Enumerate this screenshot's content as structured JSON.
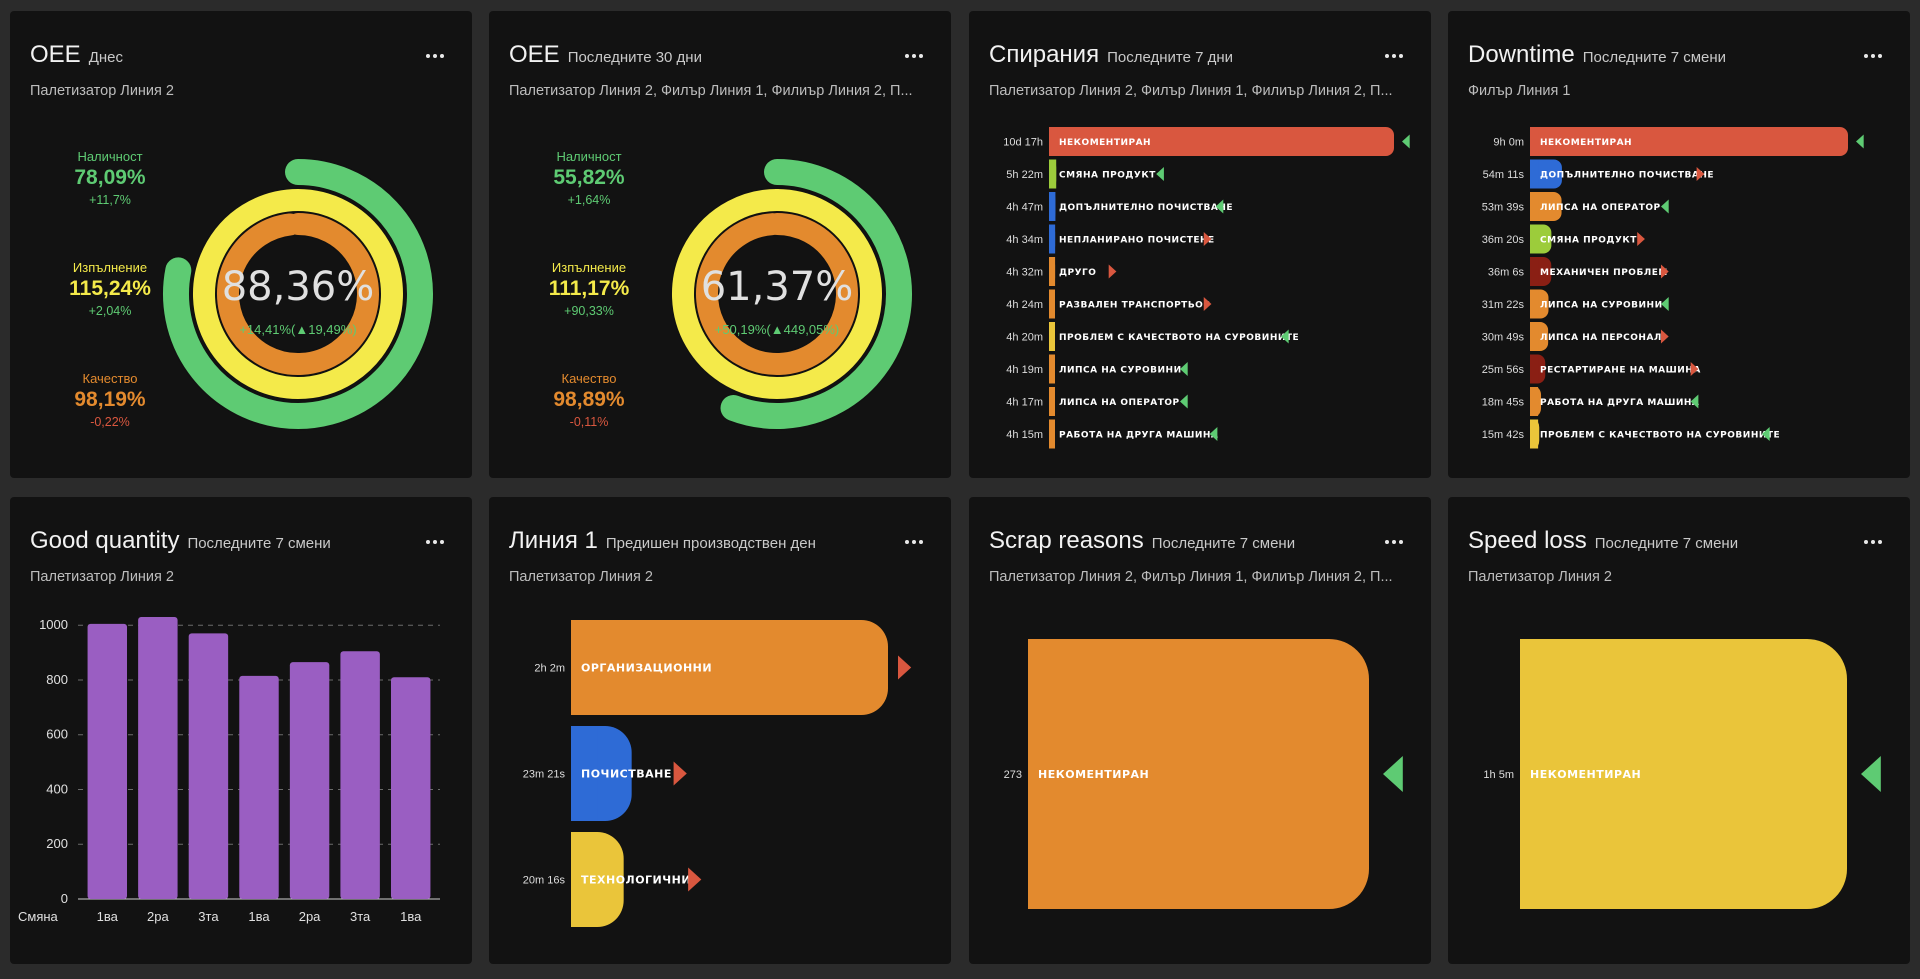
{
  "colors": {
    "green": "#5ecb73",
    "yellow": "#f4ea4a",
    "orange": "#e38a2e",
    "red": "#d9573f",
    "blue": "#2e6bd6",
    "purple": "#9a5ec2",
    "darkred": "#8a1f14",
    "lime": "#9ccc3b",
    "gold": "#eac53a"
  },
  "cards": {
    "oee_today": {
      "title": "OEE",
      "period": "Днес",
      "subtitle": "Палетизатор Линия 2",
      "center_value": "88,36%",
      "center_delta": "+14,41%(▲19,49%)",
      "availability": {
        "label": "Наличност",
        "value": "78,09%",
        "delta": "+11,7%",
        "fraction": 0.781
      },
      "performance": {
        "label": "Изпълнение",
        "value": "115,24%",
        "delta": "+2,04%",
        "fraction": 1.0
      },
      "quality": {
        "label": "Качество",
        "value": "98,19%",
        "delta": "-0,22%",
        "fraction": 0.982
      }
    },
    "oee_30": {
      "title": "OEE",
      "period": "Последните 30 дни",
      "subtitle": "Палетизатор Линия 2, Филър Линия 1, Филиър Линия 2, П...",
      "center_value": "61,37%",
      "center_delta": "+50,19%(▲449,05%)",
      "availability": {
        "label": "Наличност",
        "value": "55,82%",
        "delta": "+1,64%",
        "fraction": 0.558
      },
      "performance": {
        "label": "Изпълнение",
        "value": "111,17%",
        "delta": "+90,33%",
        "fraction": 1.0
      },
      "quality": {
        "label": "Качество",
        "value": "98,89%",
        "delta": "-0,11%",
        "fraction": 0.989
      }
    },
    "stops": {
      "title": "Спирания",
      "period": "Последните 7 дни",
      "subtitle": "Палетизатор Линия 2, Филър Линия 1, Филиър Линия 2, П...",
      "rows": [
        {
          "time": "10d 17h",
          "label": "НЕКОМЕНТИРАН",
          "minutes": 15420,
          "color": "#d9573f",
          "trend": "down"
        },
        {
          "time": "5h 22m",
          "label": "СМЯНА ПРОДУКТ",
          "minutes": 322,
          "color": "#9ccc3b",
          "trend": "down"
        },
        {
          "time": "4h 47m",
          "label": "ДОПЪЛНИТЕЛНО ПОЧИСТВАНЕ",
          "minutes": 287,
          "color": "#2e6bd6",
          "trend": "down"
        },
        {
          "time": "4h 34m",
          "label": "НЕПЛАНИРАНО ПОЧИСТЕНЕ",
          "minutes": 274,
          "color": "#2e6bd6",
          "trend": "up"
        },
        {
          "time": "4h 32m",
          "label": "ДРУГО",
          "minutes": 272,
          "color": "#e38a2e",
          "trend": "up"
        },
        {
          "time": "4h 24m",
          "label": "РАЗВАЛЕН ТРАНСПОРТЬОР",
          "minutes": 264,
          "color": "#e38a2e",
          "trend": "up"
        },
        {
          "time": "4h 20m",
          "label": "ПРОБЛЕМ С КАЧЕСТВОТО НА СУРОВИНИТЕ",
          "minutes": 260,
          "color": "#eac53a",
          "trend": "down"
        },
        {
          "time": "4h 19m",
          "label": "ЛИПСА НА СУРОВИНИ",
          "minutes": 259,
          "color": "#e38a2e",
          "trend": "down"
        },
        {
          "time": "4h 17m",
          "label": "ЛИПСА НА ОПЕРАТОР",
          "minutes": 257,
          "color": "#e38a2e",
          "trend": "down"
        },
        {
          "time": "4h 15m",
          "label": "РАБОТА НА ДРУГА МАШИНА",
          "minutes": 255,
          "color": "#e38a2e",
          "trend": "down"
        }
      ]
    },
    "downtime": {
      "title": "Downtime",
      "period": "Последните 7 смени",
      "subtitle": "Филър Линия 1",
      "rows": [
        {
          "time": "9h 0m",
          "label": "НЕКОМЕНТИРАН",
          "minutes": 540,
          "color": "#d9573f",
          "trend": "down"
        },
        {
          "time": "54m 11s",
          "label": "ДОПЪЛНИТЕЛНО ПОЧИСТВАНЕ",
          "minutes": 54.2,
          "color": "#2e6bd6",
          "trend": "up"
        },
        {
          "time": "53m 39s",
          "label": "ЛИПСА НА ОПЕРАТОР",
          "minutes": 53.6,
          "color": "#e38a2e",
          "trend": "down"
        },
        {
          "time": "36m 20s",
          "label": "СМЯНА ПРОДУКТ",
          "minutes": 36.3,
          "color": "#9ccc3b",
          "trend": "up"
        },
        {
          "time": "36m 6s",
          "label": "МЕХАНИЧЕН ПРОБЛЕМ",
          "minutes": 36.1,
          "color": "#8a1f14",
          "trend": "up"
        },
        {
          "time": "31m 22s",
          "label": "ЛИПСА НА СУРОВИНИ",
          "minutes": 31.4,
          "color": "#e38a2e",
          "trend": "down"
        },
        {
          "time": "30m 49s",
          "label": "ЛИПСА НА ПЕРСОНАЛ",
          "minutes": 30.8,
          "color": "#e38a2e",
          "trend": "up"
        },
        {
          "time": "25m 56s",
          "label": "РЕСТАРТИРАНЕ НА МАШИНА",
          "minutes": 25.9,
          "color": "#8a1f14",
          "trend": "up"
        },
        {
          "time": "18m 45s",
          "label": "РАБОТА НА ДРУГА МАШИНА",
          "minutes": 18.75,
          "color": "#e38a2e",
          "trend": "down"
        },
        {
          "time": "15m 42s",
          "label": "ПРОБЛЕМ С КАЧЕСТВОТО НА СУРОВИНИТЕ",
          "minutes": 15.7,
          "color": "#eac53a",
          "trend": "down"
        }
      ]
    },
    "good_quantity": {
      "title": "Good quantity",
      "period": "Последните 7 смени",
      "subtitle": "Палетизатор Линия 2"
    },
    "line1": {
      "title": "Линия 1",
      "period": "Предишен производствен ден",
      "subtitle": "Палетизатор Линия 2",
      "rows": [
        {
          "time": "2h 2m",
          "label": "ОРГАНИЗАЦИОННИ",
          "minutes": 122,
          "color": "#e38a2e",
          "trend": "up"
        },
        {
          "time": "23m 21s",
          "label": "ПОЧИСТВАНЕ",
          "minutes": 23.35,
          "color": "#2e6bd6",
          "trend": "up"
        },
        {
          "time": "20m 16s",
          "label": "ТЕХНОЛОГИЧНИ",
          "minutes": 20.27,
          "color": "#eac53a",
          "trend": "up"
        }
      ]
    },
    "scrap": {
      "title": "Scrap reasons",
      "period": "Последните 7 смени",
      "subtitle": "Палетизатор Линия 2, Филър Линия 1, Филиър Линия 2, П...",
      "rows": [
        {
          "time": "273",
          "label": "НЕКОМЕНТИРАН",
          "minutes": 273,
          "color": "#e38a2e",
          "trend": "down"
        }
      ]
    },
    "speed_loss": {
      "title": "Speed loss",
      "period": "Последните 7 смени",
      "subtitle": "Палетизатор Линия 2",
      "rows": [
        {
          "time": "1h 5m",
          "label": "НЕКОМЕНТИРАН",
          "minutes": 65,
          "color": "#eac53a",
          "trend": "down"
        }
      ]
    }
  },
  "chart_data": {
    "type": "bar",
    "title": "Good quantity",
    "xlabel": "Смяна",
    "ylabel": "",
    "categories": [
      "1ва",
      "2ра",
      "3та",
      "1ва",
      "2ра",
      "3та",
      "1ва"
    ],
    "values": [
      1005,
      1030,
      970,
      815,
      865,
      905,
      810
    ],
    "ylim": [
      0,
      1000
    ],
    "yticks": [
      0,
      200,
      400,
      600,
      800,
      1000
    ],
    "color": "#9a5ec2",
    "grid": true
  }
}
